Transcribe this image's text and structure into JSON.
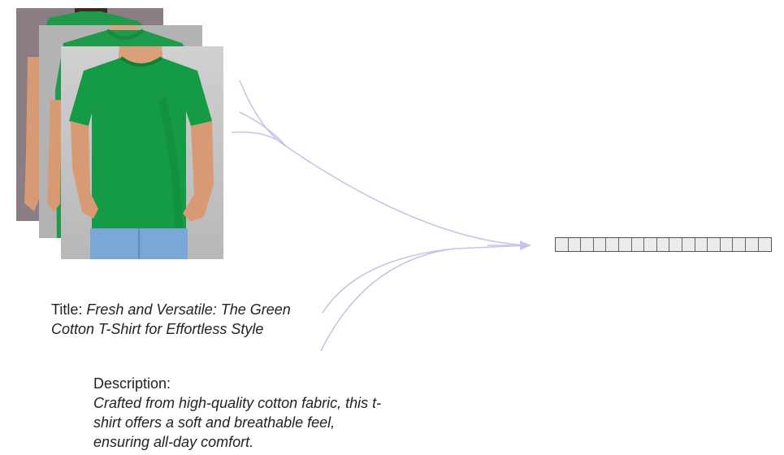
{
  "product": {
    "title_label": "Title:",
    "title_text": "Fresh and Versatile: The Green Cotton T-Shirt for Effortless Style",
    "description_label": "Description:",
    "description_text": "Crafted from high-quality cotton fabric, this t-shirt offers a soft and breathable feel, ensuring all-day comfort."
  },
  "images": [
    {
      "name": "tshirt-photo-back",
      "shirt_color": "#1f9a4a",
      "background": "#8a7e84"
    },
    {
      "name": "tshirt-photo-middle",
      "shirt_color": "#1f9a4a",
      "background": "#b3b3b3"
    },
    {
      "name": "tshirt-photo-front",
      "shirt_color": "#159a45",
      "background": "#c5c5c5"
    }
  ],
  "embedding": {
    "cell_count": 17,
    "cell_color": "#ececec",
    "border_color": "#555555"
  },
  "colors": {
    "arrow": "#c9c4e6",
    "text": "#222222"
  }
}
